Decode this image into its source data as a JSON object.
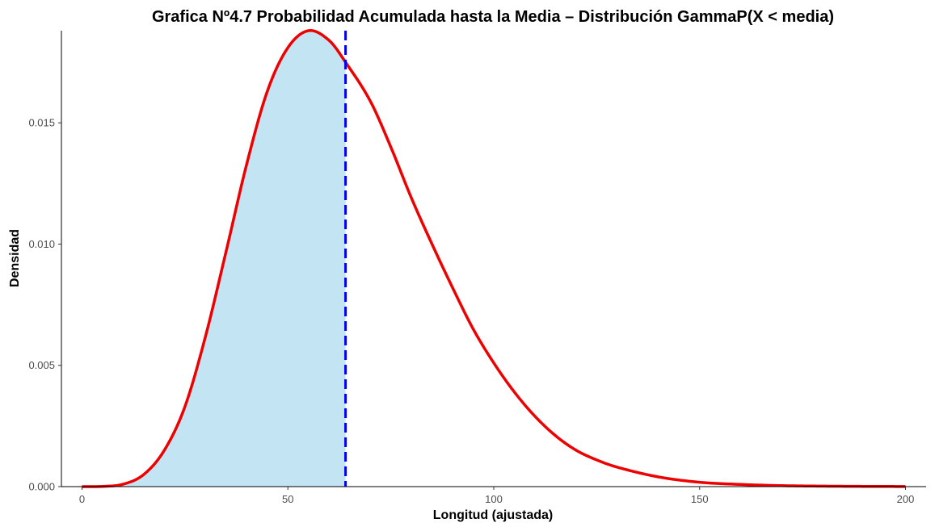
{
  "chart_data": {
    "type": "area",
    "title": "Grafica Nº4.7 Probabilidad Acumulada hasta la Media – Distribución GammaP(X < media)",
    "xlabel": "Longitud (ajustada)",
    "ylabel": "Densidad",
    "xlim": [
      -5,
      205
    ],
    "ylim": [
      0,
      0.0188
    ],
    "x_ticks": [
      0,
      50,
      100,
      150,
      200
    ],
    "x_tick_labels": [
      "0",
      "50",
      "100",
      "150",
      "200"
    ],
    "y_ticks": [
      0,
      0.005,
      0.01,
      0.015
    ],
    "y_tick_labels": [
      "0.000",
      "0.005",
      "0.010",
      "0.015"
    ],
    "grid": false,
    "series": [
      {
        "x": [
          0,
          5,
          10,
          15,
          20,
          25,
          30,
          35,
          40,
          45,
          50,
          55,
          60,
          64,
          70,
          75,
          80,
          85,
          90,
          95,
          100,
          105,
          110,
          115,
          120,
          125,
          130,
          140,
          150,
          160,
          170,
          180,
          190,
          200
        ],
        "y": [
          0,
          1e-05,
          0.0001,
          0.0005,
          0.0015,
          0.0033,
          0.0062,
          0.0097,
          0.0133,
          0.0163,
          0.0181,
          0.0188,
          0.0184,
          0.0175,
          0.0159,
          0.014,
          0.0119,
          0.01,
          0.0082,
          0.0065,
          0.0051,
          0.0039,
          0.0029,
          0.0021,
          0.0015,
          0.0011,
          0.0008,
          0.0004,
          0.00018,
          9e-05,
          4e-05,
          2e-05,
          1e-05,
          5e-06
        ]
      }
    ],
    "mean": 64,
    "colors": {
      "curve": "#ee0000",
      "fill": "#c3e4f3",
      "mean_line": "#0000ee",
      "axis": "#000000"
    }
  }
}
